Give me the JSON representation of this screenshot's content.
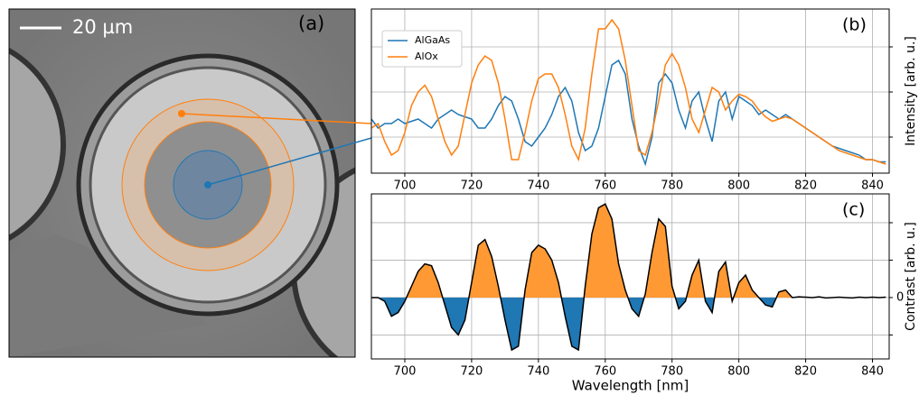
{
  "image_panel": {
    "scale_label": "20 µm",
    "panel_label": "(a)"
  },
  "chart_data": [
    {
      "type": "line",
      "panel_label": "(b)",
      "ylabel": "Intensity [arb. u.]",
      "x": [
        690,
        692,
        694,
        696,
        698,
        700,
        702,
        704,
        706,
        708,
        710,
        712,
        714,
        716,
        718,
        720,
        722,
        724,
        726,
        728,
        730,
        732,
        734,
        736,
        738,
        740,
        742,
        744,
        746,
        748,
        750,
        752,
        754,
        756,
        758,
        760,
        762,
        764,
        766,
        768,
        770,
        772,
        774,
        776,
        778,
        780,
        782,
        784,
        786,
        788,
        790,
        792,
        794,
        796,
        798,
        800,
        802,
        804,
        806,
        808,
        810,
        812,
        814,
        816,
        818,
        820,
        822,
        824,
        826,
        828,
        830,
        832,
        834,
        836,
        838,
        840,
        842,
        844
      ],
      "series": [
        {
          "name": "AlGaAs",
          "color": "#1f77b4",
          "values": [
            1.2,
            1.0,
            1.1,
            1.1,
            1.2,
            1.1,
            1.15,
            1.2,
            1.1,
            1.0,
            1.2,
            1.3,
            1.4,
            1.3,
            1.25,
            1.2,
            1.0,
            1.0,
            1.2,
            1.5,
            1.7,
            1.6,
            1.2,
            0.7,
            0.6,
            0.8,
            1.0,
            1.3,
            1.7,
            1.9,
            1.6,
            0.9,
            0.5,
            0.6,
            1.0,
            1.7,
            2.4,
            2.5,
            2.2,
            1.2,
            0.6,
            0.2,
            0.8,
            2.0,
            2.2,
            2.0,
            1.4,
            1.0,
            1.6,
            1.8,
            1.2,
            0.7,
            1.6,
            1.8,
            1.2,
            1.7,
            1.6,
            1.5,
            1.3,
            1.4,
            1.3,
            1.2,
            1.3,
            1.2,
            1.1,
            1.0,
            0.9,
            0.8,
            0.7,
            0.6,
            0.55,
            0.5,
            0.45,
            0.4,
            0.3,
            0.3,
            0.25,
            0.25
          ]
        },
        {
          "name": "AlOx",
          "color": "#ff7f0e",
          "values": [
            1.0,
            1.1,
            0.7,
            0.4,
            0.5,
            0.9,
            1.5,
            1.8,
            1.95,
            1.7,
            1.2,
            0.7,
            0.4,
            0.6,
            1.3,
            2.0,
            2.4,
            2.6,
            2.5,
            2.0,
            1.2,
            0.3,
            0.3,
            0.9,
            1.6,
            2.1,
            2.2,
            2.2,
            1.9,
            1.3,
            0.6,
            0.3,
            1.0,
            2.2,
            3.2,
            3.2,
            3.4,
            3.2,
            2.5,
            1.5,
            0.5,
            0.4,
            0.9,
            1.6,
            2.4,
            2.65,
            2.4,
            1.9,
            1.2,
            0.9,
            1.4,
            1.9,
            1.8,
            1.4,
            1.6,
            1.75,
            1.7,
            1.6,
            1.4,
            1.25,
            1.15,
            1.2,
            1.25,
            1.2,
            1.1,
            1.0,
            0.9,
            0.8,
            0.7,
            0.6,
            0.5,
            0.45,
            0.4,
            0.35,
            0.3,
            0.3,
            0.25,
            0.2
          ]
        }
      ],
      "xlim": [
        690,
        845
      ],
      "xticks": [
        700,
        720,
        740,
        760,
        780,
        800,
        820,
        840
      ],
      "ylim": [
        0,
        3.64
      ],
      "yticks": [
        0.8,
        1.8,
        2.8
      ],
      "ytick_labels": false,
      "grid": true,
      "legend": "upper left"
    },
    {
      "type": "area",
      "panel_label": "(c)",
      "ylabel": "Contrast [arb. u.]",
      "xlabel": "Wavelength [nm]",
      "x": [
        690,
        692,
        694,
        696,
        698,
        700,
        702,
        704,
        706,
        708,
        710,
        712,
        714,
        716,
        718,
        720,
        722,
        724,
        726,
        728,
        730,
        732,
        734,
        736,
        738,
        740,
        742,
        744,
        746,
        748,
        750,
        752,
        754,
        756,
        758,
        760,
        762,
        764,
        766,
        768,
        770,
        772,
        774,
        776,
        778,
        780,
        782,
        784,
        786,
        788,
        790,
        792,
        794,
        796,
        798,
        800,
        802,
        804,
        806,
        808,
        810,
        812,
        814,
        816,
        818,
        820,
        822,
        824,
        826,
        828,
        830,
        832,
        834,
        836,
        838,
        840,
        842,
        844
      ],
      "values": [
        0,
        0,
        -0.1,
        -0.5,
        -0.4,
        -0.1,
        0.3,
        0.7,
        0.9,
        0.85,
        0.4,
        -0.2,
        -0.8,
        -1.0,
        -0.6,
        0.4,
        1.4,
        1.55,
        1.1,
        0.3,
        -0.6,
        -1.4,
        -1.3,
        0.2,
        1.2,
        1.4,
        1.3,
        1.0,
        0.4,
        -0.5,
        -1.3,
        -1.4,
        0.3,
        1.7,
        2.4,
        2.5,
        2.1,
        0.9,
        0.2,
        -0.3,
        -0.5,
        0.1,
        1.2,
        2.1,
        1.9,
        0.3,
        -0.3,
        -0.1,
        0.6,
        1.0,
        -0.1,
        -0.4,
        0.7,
        0.95,
        -0.1,
        0.4,
        0.6,
        0.2,
        0,
        -0.2,
        -0.25,
        0.15,
        0.2,
        0,
        0.02,
        0.01,
        0,
        0.02,
        -0.01,
        0,
        0.01,
        0,
        -0.01,
        0.01,
        0,
        0.01,
        0,
        0.01
      ],
      "line_color": "#000000",
      "positive_color": "#ff9933",
      "negative_color": "#1f77b4",
      "xlim": [
        690,
        845
      ],
      "xticks": [
        700,
        720,
        740,
        760,
        780,
        800,
        820,
        840
      ],
      "ylim": [
        -1.64,
        2.77
      ],
      "yticks": [
        0
      ],
      "grid_y": [
        -1,
        1,
        2
      ],
      "grid": true
    }
  ]
}
